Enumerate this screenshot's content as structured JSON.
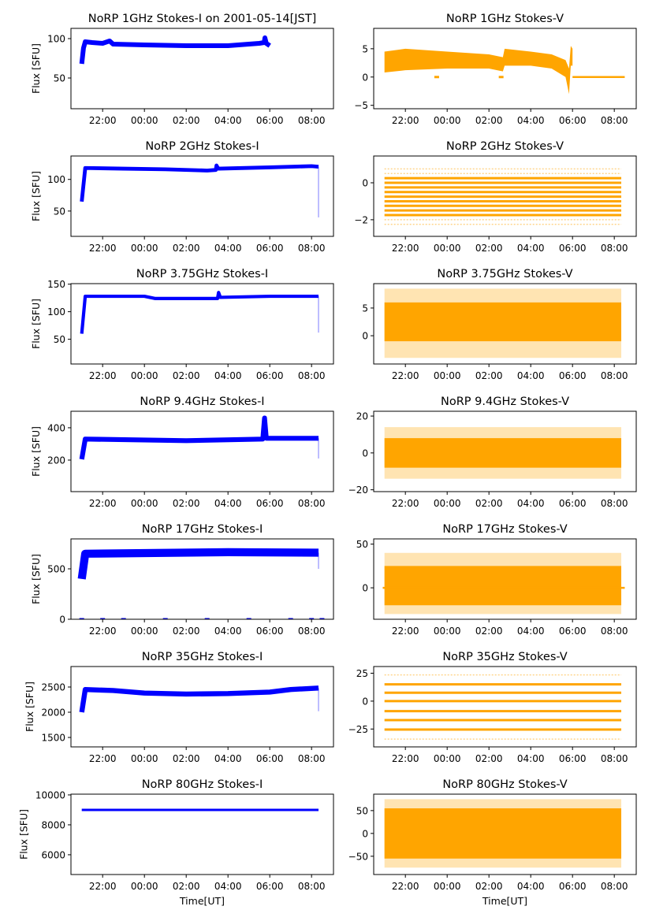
{
  "xticks": [
    "22:00",
    "00:00",
    "02:00",
    "04:00",
    "06:00",
    "08:00"
  ],
  "xlim": [
    "20:29",
    "09:03"
  ],
  "chart_data": [
    {
      "type": "line",
      "title": "NoRP 1GHz Stokes-I on 2001-05-14[JST]",
      "ylabel": "Flux [SFU]",
      "xlabel": "",
      "color": "#0000ff",
      "ylim": [
        11,
        113
      ],
      "yticks": [
        "50",
        "100"
      ],
      "line": [
        [
          "21:00",
          68
        ],
        [
          "21:05",
          88
        ],
        [
          "21:10",
          96
        ],
        [
          "21:30",
          95
        ],
        [
          "22:00",
          94
        ],
        [
          "22:20",
          97
        ],
        [
          "22:30",
          93
        ],
        [
          "00:00",
          92
        ],
        [
          "02:00",
          91
        ],
        [
          "04:00",
          91
        ],
        [
          "05:30",
          94
        ],
        [
          "05:44",
          95
        ],
        [
          "05:46",
          101
        ],
        [
          "05:50",
          94
        ],
        [
          "06:00",
          91
        ]
      ],
      "noise": 3
    },
    {
      "type": "scatter",
      "title": "NoRP 1GHz Stokes-V",
      "ylabel": "",
      "xlabel": "",
      "color": "#ffa500",
      "ylim": [
        -5.6,
        8.6
      ],
      "yticks": [
        "−5",
        "0",
        "5"
      ],
      "envelope": [
        [
          "21:00",
          0.8,
          4.5
        ],
        [
          "22:00",
          1.2,
          5
        ],
        [
          "00:00",
          1.5,
          4.5
        ],
        [
          "02:00",
          1.5,
          4
        ],
        [
          "02:40",
          1,
          3.5
        ],
        [
          "02:45",
          2,
          5
        ],
        [
          "04:00",
          2,
          4.5
        ],
        [
          "05:00",
          1.5,
          4
        ],
        [
          "05:40",
          0,
          3
        ],
        [
          "05:50",
          -3,
          1.5
        ],
        [
          "05:55",
          2,
          5.5
        ],
        [
          "06:00",
          2,
          5
        ]
      ],
      "flat": {
        "from": "06:00",
        "to": "08:30",
        "value": 0
      },
      "points": [
        [
          "23:30",
          0
        ],
        [
          "02:35",
          0
        ]
      ]
    },
    {
      "type": "line",
      "title": "NoRP 2GHz Stokes-I",
      "ylabel": "Flux [SFU]",
      "xlabel": "",
      "color": "#0000ff",
      "ylim": [
        10,
        137
      ],
      "yticks": [
        "50",
        "100"
      ],
      "line": [
        [
          "21:00",
          65
        ],
        [
          "21:10",
          118
        ],
        [
          "23:00",
          117
        ],
        [
          "01:00",
          116
        ],
        [
          "03:00",
          114
        ],
        [
          "03:25",
          115
        ],
        [
          "03:27",
          122
        ],
        [
          "03:32",
          117
        ],
        [
          "06:00",
          119
        ],
        [
          "08:00",
          121
        ],
        [
          "08:20",
          120
        ]
      ],
      "noise": 3,
      "dip": [
        "08:20",
        40
      ]
    },
    {
      "type": "scatter",
      "title": "NoRP 2GHz Stokes-V",
      "ylabel": "",
      "xlabel": "",
      "color": "#ffa500",
      "ylim": [
        -2.9,
        1.45
      ],
      "yticks": [
        "−2",
        "0"
      ],
      "span": [
        "21:00",
        "08:20"
      ],
      "levels": [
        -2.25,
        -2,
        -1.75,
        -1.5,
        -1.25,
        -1,
        -0.75,
        -0.5,
        -0.25,
        0,
        0.25,
        0.5,
        0.75
      ],
      "light_levels": [
        -2.25,
        -2,
        0.5,
        0.75
      ]
    },
    {
      "type": "line",
      "title": "NoRP 3.75GHz Stokes-I",
      "ylabel": "Flux [SFU]",
      "xlabel": "",
      "color": "#0000ff",
      "ylim": [
        5,
        151
      ],
      "yticks": [
        "50",
        "100",
        "150"
      ],
      "line": [
        [
          "21:00",
          60
        ],
        [
          "21:10",
          128
        ],
        [
          "00:00",
          128
        ],
        [
          "00:30",
          124
        ],
        [
          "03:30",
          124
        ],
        [
          "03:33",
          135
        ],
        [
          "03:38",
          126
        ],
        [
          "06:00",
          128
        ],
        [
          "08:20",
          128
        ]
      ],
      "noise": 3,
      "dip": [
        "08:20",
        62
      ]
    },
    {
      "type": "scatter",
      "title": "NoRP 3.75GHz Stokes-V",
      "ylabel": "",
      "xlabel": "",
      "color": "#ffa500",
      "ylim": [
        -5.1,
        9.4
      ],
      "yticks": [
        "0",
        "5"
      ],
      "envelope": [
        [
          "21:00",
          -1,
          6
        ],
        [
          "08:20",
          -1,
          6
        ]
      ],
      "outer": [
        [
          "21:00",
          -4,
          8.5
        ],
        [
          "08:20",
          -4,
          8.5
        ]
      ]
    },
    {
      "type": "line",
      "title": "NoRP 9.4GHz Stokes-I",
      "ylabel": "Flux [SFU]",
      "xlabel": "",
      "color": "#0000ff",
      "ylim": [
        5,
        502
      ],
      "yticks": [
        "200",
        "400"
      ],
      "line": [
        [
          "21:00",
          205
        ],
        [
          "21:10",
          330
        ],
        [
          "02:00",
          320
        ],
        [
          "05:40",
          330
        ],
        [
          "05:45",
          460
        ],
        [
          "05:50",
          335
        ],
        [
          "08:20",
          335
        ]
      ],
      "noise": 15,
      "dip": [
        "08:20",
        210
      ]
    },
    {
      "type": "scatter",
      "title": "NoRP 9.4GHz Stokes-V",
      "ylabel": "",
      "xlabel": "",
      "color": "#ffa500",
      "ylim": [
        -21,
        22.6
      ],
      "yticks": [
        "−20",
        "0",
        "20"
      ],
      "envelope": [
        [
          "21:00",
          -8,
          8
        ],
        [
          "08:20",
          -8,
          8
        ]
      ],
      "outer": [
        [
          "21:00",
          -14,
          14
        ],
        [
          "08:20",
          -14,
          14
        ]
      ]
    },
    {
      "type": "line",
      "title": "NoRP 17GHz Stokes-I",
      "ylabel": "Flux [SFU]",
      "xlabel": "",
      "color": "#0000ff",
      "ylim": [
        0,
        797
      ],
      "yticks": [
        "0",
        "500"
      ],
      "line": [
        [
          "21:00",
          400
        ],
        [
          "21:10",
          650
        ],
        [
          "04:00",
          665
        ],
        [
          "08:20",
          660
        ]
      ],
      "noise": 40,
      "dip": [
        "08:20",
        500
      ],
      "points": [
        [
          "21:00",
          0
        ],
        [
          "22:00",
          0
        ],
        [
          "23:00",
          0
        ],
        [
          "01:00",
          0
        ],
        [
          "03:00",
          0
        ],
        [
          "05:00",
          0
        ],
        [
          "07:00",
          0
        ],
        [
          "08:00",
          0
        ],
        [
          "08:30",
          0
        ]
      ]
    },
    {
      "type": "scatter",
      "title": "NoRP 17GHz Stokes-V",
      "ylabel": "",
      "xlabel": "",
      "color": "#ffa500",
      "ylim": [
        -36,
        56
      ],
      "yticks": [
        "0",
        "50"
      ],
      "envelope": [
        [
          "21:00",
          -20,
          25
        ],
        [
          "08:20",
          -20,
          25
        ]
      ],
      "outer": [
        [
          "21:00",
          -30,
          40
        ],
        [
          "08:20",
          -30,
          40
        ]
      ],
      "flat": {
        "from": "20:55",
        "to": "08:30",
        "value": 0
      }
    },
    {
      "type": "line",
      "title": "NoRP 35GHz Stokes-I",
      "ylabel": "Flux [SFU]",
      "xlabel": "",
      "color": "#0000ff",
      "ylim": [
        1313,
        2906
      ],
      "yticks": [
        "1500",
        "2000",
        "2500"
      ],
      "line": [
        [
          "21:00",
          2000
        ],
        [
          "21:10",
          2450
        ],
        [
          "22:30",
          2430
        ],
        [
          "00:00",
          2380
        ],
        [
          "02:00",
          2360
        ],
        [
          "04:00",
          2370
        ],
        [
          "06:00",
          2400
        ],
        [
          "07:00",
          2450
        ],
        [
          "08:20",
          2480
        ]
      ],
      "noise": 50,
      "dip": [
        "08:20",
        2020
      ]
    },
    {
      "type": "scatter",
      "title": "NoRP 35GHz Stokes-V",
      "ylabel": "",
      "xlabel": "",
      "color": "#ffa500",
      "ylim": [
        -41,
        31
      ],
      "yticks": [
        "−25",
        "0",
        "25"
      ],
      "span": [
        "21:00",
        "08:20"
      ],
      "levels": [
        23.5,
        15,
        7.5,
        0,
        -9,
        -17,
        -25.5,
        -34
      ],
      "light_levels": [
        23.5,
        -34
      ]
    },
    {
      "type": "line",
      "title": "NoRP 80GHz Stokes-I",
      "ylabel": "Flux [SFU]",
      "xlabel": "Time[UT]",
      "color": "#0000ff",
      "ylim": [
        4680,
        10050
      ],
      "yticks": [
        "6000",
        "8000",
        "10000"
      ],
      "line": [
        [
          "21:00",
          9000
        ],
        [
          "08:20",
          9000
        ]
      ],
      "noise": 60
    },
    {
      "type": "scatter",
      "title": "NoRP 80GHz Stokes-V",
      "ylabel": "",
      "xlabel": "Time[UT]",
      "color": "#ffa500",
      "ylim": [
        -90,
        86
      ],
      "yticks": [
        "−50",
        "0",
        "50"
      ],
      "envelope": [
        [
          "21:00",
          -55,
          55
        ],
        [
          "08:20",
          -55,
          55
        ]
      ],
      "outer": [
        [
          "21:00",
          -75,
          75
        ],
        [
          "08:20",
          -75,
          75
        ]
      ]
    }
  ]
}
